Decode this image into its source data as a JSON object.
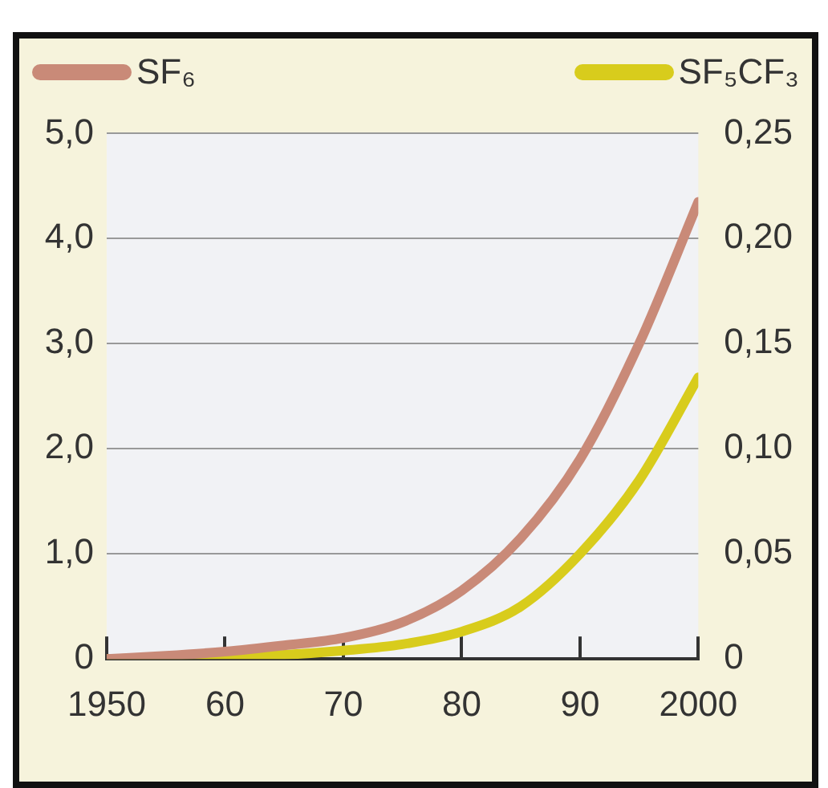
{
  "chart_data": {
    "type": "line",
    "x": [
      1950,
      1955,
      1960,
      1965,
      1970,
      1975,
      1980,
      1985,
      1990,
      1995,
      2000
    ],
    "series": [
      {
        "name": "SF₆",
        "color": "#c98a78",
        "values": [
          0,
          0.03,
          0.07,
          0.13,
          0.2,
          0.35,
          0.65,
          1.15,
          1.9,
          3.0,
          4.35
        ]
      },
      {
        "name": "SF₅CF₃",
        "color": "#d8cc1c",
        "axis": "y2",
        "values": [
          0,
          0.0005,
          0.001,
          0.002,
          0.004,
          0.007,
          0.013,
          0.025,
          0.05,
          0.085,
          0.134
        ]
      }
    ],
    "xlim": [
      1950,
      2000
    ],
    "xticks": [
      1950,
      {
        "value": 1960,
        "label": "60"
      },
      {
        "value": 1970,
        "label": "70"
      },
      {
        "value": 1980,
        "label": "80"
      },
      {
        "value": 1990,
        "label": "90"
      },
      2000
    ],
    "ylim": [
      0,
      5
    ],
    "yticks": [
      0,
      {
        "value": 1,
        "label": "1,0"
      },
      {
        "value": 2,
        "label": "2,0"
      },
      {
        "value": 3,
        "label": "3,0"
      },
      {
        "value": 4,
        "label": "4,0"
      },
      {
        "value": 5,
        "label": "5,0"
      }
    ],
    "y2lim": [
      0,
      0.25
    ],
    "y2ticks": [
      0,
      {
        "value": 0.05,
        "label": "0,05"
      },
      {
        "value": 0.1,
        "label": "0,10"
      },
      {
        "value": 0.15,
        "label": "0,15"
      },
      {
        "value": 0.2,
        "label": "0,20"
      },
      {
        "value": 0.25,
        "label": "0,25"
      }
    ],
    "grid": "y",
    "legend": "top",
    "marker": "none",
    "line_style": "solid"
  }
}
